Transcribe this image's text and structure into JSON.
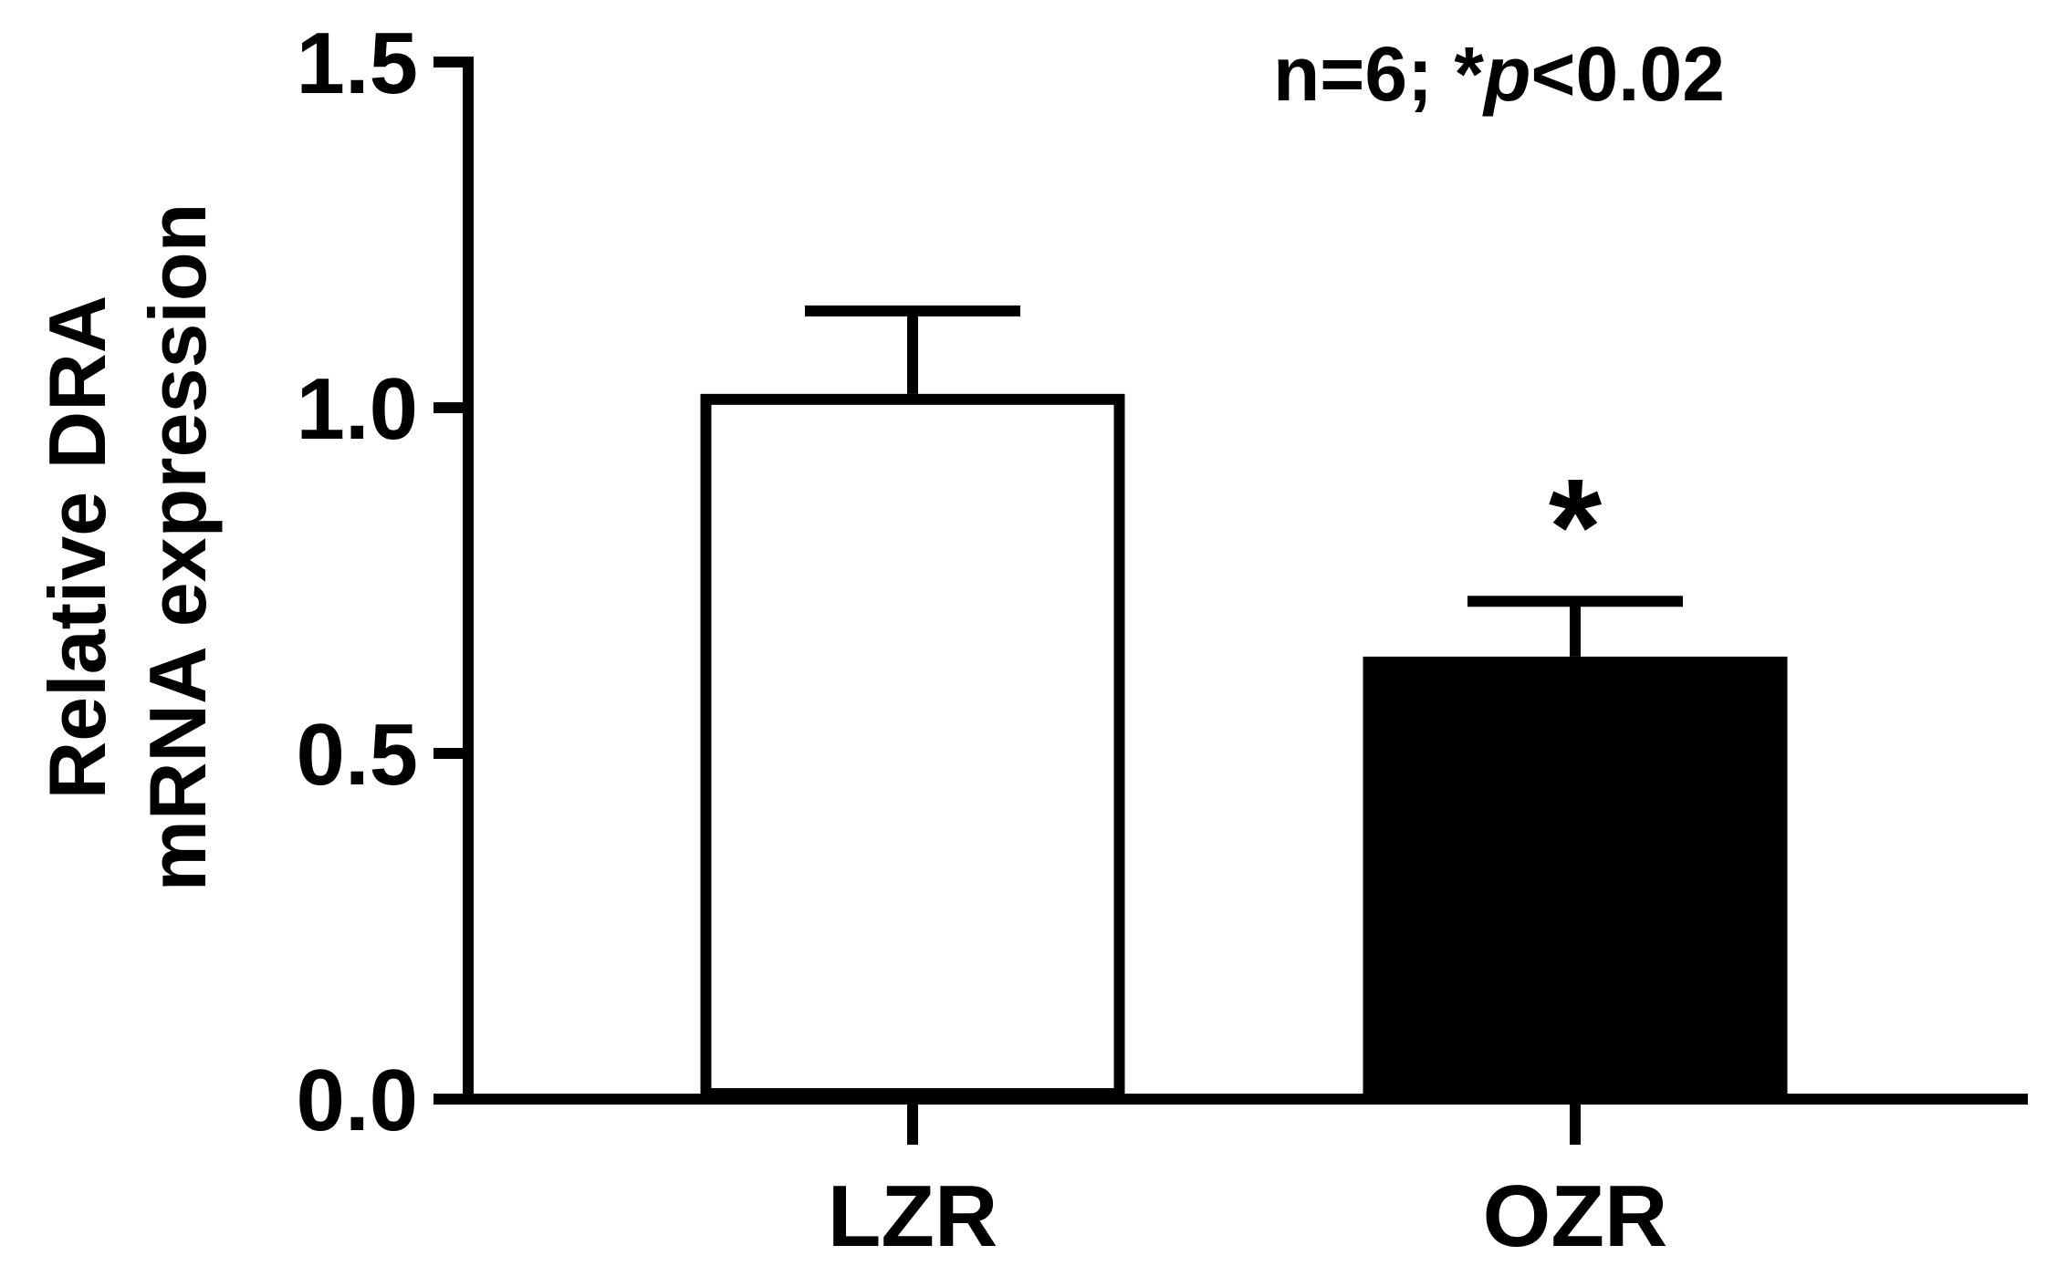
{
  "chart_data": {
    "type": "bar",
    "categories": [
      "LZR",
      "OZR"
    ],
    "values": [
      1.02,
      0.64
    ],
    "errors": [
      0.12,
      0.08
    ],
    "bar_fills": [
      "#ffffff",
      "#000000"
    ],
    "significance": [
      "",
      "*"
    ],
    "ylabel_lines": [
      "Relative DRA",
      "mRNA expression"
    ],
    "ylim": [
      0,
      1.5
    ],
    "yticks": [
      0.0,
      0.5,
      1.0,
      1.5
    ],
    "ytick_labels": [
      "0.0",
      "0.5",
      "1.0",
      "1.5"
    ],
    "annotation": {
      "prefix": "n=6; *",
      "italic": "p",
      "suffix": "<0.02"
    },
    "grid": false,
    "legend": "none"
  }
}
